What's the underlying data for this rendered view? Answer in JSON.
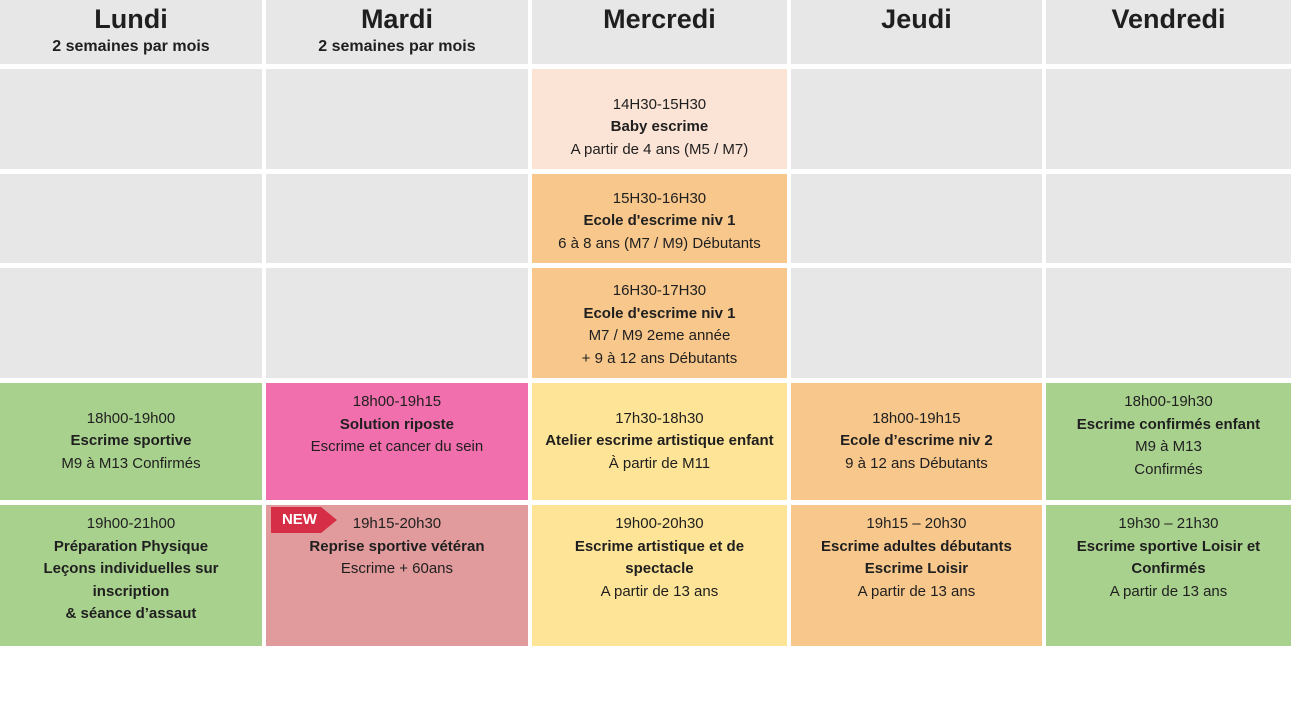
{
  "colors": {
    "header_gray": "#e7e7e7",
    "empty_gray": "#e7e7e7",
    "peach": "#fbe3d5",
    "orange": "#f7c78c",
    "green": "#a9d18e",
    "pink": "#f06fac",
    "yellow": "#fee496",
    "salmon": "#e19b9c",
    "badge_red": "#d72e47",
    "text": "#1f1f1f"
  },
  "columns": [
    {
      "title": "Lundi",
      "subtitle": "2 semaines par mois"
    },
    {
      "title": "Mardi",
      "subtitle": "2 semaines par mois"
    },
    {
      "title": "Mercredi",
      "subtitle": ""
    },
    {
      "title": "Jeudi",
      "subtitle": ""
    },
    {
      "title": "Vendredi",
      "subtitle": ""
    }
  ],
  "badge": {
    "label": "NEW"
  },
  "events": {
    "baby_escrime": {
      "day": "Mercredi",
      "lines": [
        {
          "text": "14H30-15H30",
          "bold": false
        },
        {
          "text": "Baby escrime",
          "bold": true
        },
        {
          "text": "A partir de 4 ans (M5 / M7)",
          "bold": false
        }
      ]
    },
    "ecole_niv1_debutants": {
      "day": "Mercredi",
      "lines": [
        {
          "text": "15H30-16H30",
          "bold": false
        },
        {
          "text": "Ecole d'escrime niv 1",
          "bold": true
        },
        {
          "text": "6 à 8 ans (M7 / M9)  Débutants",
          "bold": false
        }
      ]
    },
    "ecole_niv1_2eme": {
      "day": "Mercredi",
      "lines": [
        {
          "text": "16H30-17H30",
          "bold": false
        },
        {
          "text": "Ecole d'escrime niv 1",
          "bold": true
        },
        {
          "text": "M7 / M9 2eme année",
          "bold": false
        },
        {
          "text": "+ 9 à 12 ans Débutants",
          "bold": false
        }
      ]
    },
    "escrime_sportive": {
      "day": "Lundi",
      "lines": [
        {
          "text": "18h00-19h00",
          "bold": false
        },
        {
          "text": "Escrime sportive",
          "bold": true
        },
        {
          "text": "M9 à M13 Confirmés",
          "bold": false
        }
      ]
    },
    "solution_riposte": {
      "day": "Mardi",
      "lines": [
        {
          "text": "18h00-19h15",
          "bold": false
        },
        {
          "text": "Solution riposte",
          "bold": true
        },
        {
          "text": "Escrime et cancer du sein",
          "bold": false
        }
      ]
    },
    "atelier_artistique_enfant": {
      "day": "Mercredi",
      "lines": [
        {
          "text": "17h30-18h30",
          "bold": false
        },
        {
          "text": "Atelier escrime artistique enfant",
          "bold": true
        },
        {
          "text": "À partir de M11",
          "bold": false
        }
      ]
    },
    "ecole_niv2": {
      "day": "Jeudi",
      "lines": [
        {
          "text": "18h00-19h15",
          "bold": false
        },
        {
          "text": "Ecole d’escrime niv 2",
          "bold": true
        },
        {
          "text": "9 à 12 ans Débutants",
          "bold": false
        }
      ]
    },
    "escrime_confirmes_enfant": {
      "day": "Vendredi",
      "lines": [
        {
          "text": "18h00-19h30",
          "bold": false
        },
        {
          "text": "Escrime confirmés enfant",
          "bold": true
        },
        {
          "text": "M9 à M13",
          "bold": false
        },
        {
          "text": "Confirmés",
          "bold": false
        }
      ]
    },
    "preparation_physique": {
      "day": "Lundi",
      "lines": [
        {
          "text": "19h00-21h00",
          "bold": false
        },
        {
          "text": "Préparation Physique",
          "bold": true
        },
        {
          "text": "Leçons individuelles sur inscription",
          "bold": true
        },
        {
          "text": "& séance d’assaut",
          "bold": true
        }
      ]
    },
    "reprise_sportive_veteran": {
      "day": "Mardi",
      "badge": "NEW",
      "lines": [
        {
          "text": "19h15-20h30",
          "bold": false
        },
        {
          "text": "Reprise sportive vétéran",
          "bold": true
        },
        {
          "text": "Escrime + 60ans",
          "bold": false
        }
      ]
    },
    "escrime_artistique_spectacle": {
      "day": "Mercredi",
      "lines": [
        {
          "text": "19h00-20h30",
          "bold": false
        },
        {
          "text": "Escrime artistique et de spectacle",
          "bold": true
        },
        {
          "text": "A partir de 13 ans",
          "bold": false
        }
      ]
    },
    "escrime_adultes_debutants": {
      "day": "Jeudi",
      "lines": [
        {
          "text": "19h15 – 20h30",
          "bold": false
        },
        {
          "text": "Escrime adultes débutants",
          "bold": true
        },
        {
          "text": "Escrime Loisir",
          "bold": true
        },
        {
          "text": "A partir de 13 ans",
          "bold": false
        }
      ]
    },
    "escrime_sportive_loisir_confirmes": {
      "day": "Vendredi",
      "lines": [
        {
          "text": "19h30 – 21h30",
          "bold": false
        },
        {
          "text": "Escrime sportive Loisir et Confirmés",
          "bold": true
        },
        {
          "text": "A partir de 13 ans",
          "bold": false
        }
      ]
    }
  }
}
